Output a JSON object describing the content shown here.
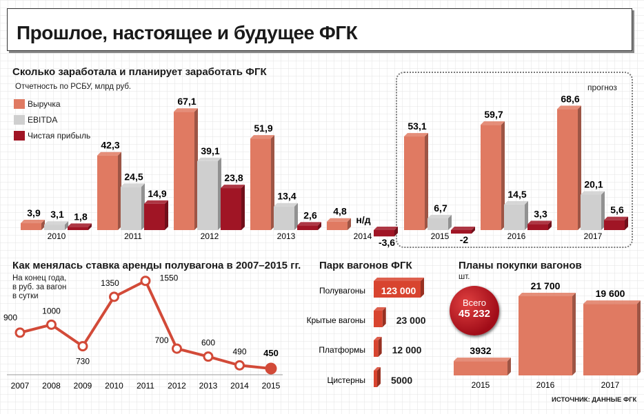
{
  "title": "Прошлое, настоящее и будущее ФГК",
  "source": "ИСТОЧНИК: ДАННЫЕ ФГК",
  "colors": {
    "revenue": "#e07a62",
    "ebitda": "#cfcfcf",
    "profit": "#a01525",
    "line": "#d24a38",
    "wagon": "#d8442f"
  },
  "revenue_section": {
    "title": "Сколько заработала и планирует заработать ФГК",
    "subtitle": "Отчетность по РСБУ, млрд руб.",
    "forecast_label": "прогноз",
    "legend": [
      "Выручка",
      "EBITDA",
      "Чистая прибыль"
    ]
  },
  "rent_section": {
    "title": "Как менялась ставка аренды полувагона в 2007–2015 гг.",
    "note_lines": [
      "На конец года,",
      "в руб. за вагон",
      "в сутки"
    ]
  },
  "fleet_section": {
    "title": "Парк вагонов ФГК"
  },
  "purchase_section": {
    "title": "Планы покупки вагонов",
    "unit": "шт.",
    "total_label": "Всего",
    "total_value": "45 232"
  },
  "chart_data": [
    {
      "type": "bar",
      "title": "Сколько заработала и планирует заработать ФГК",
      "ylabel": "Отчетность по РСБУ, млрд руб.",
      "categories": [
        "2010",
        "2011",
        "2012",
        "2013",
        "2014",
        "2015",
        "2016",
        "2017"
      ],
      "forecast_from": "2015",
      "series": [
        {
          "name": "Выручка",
          "values": [
            3.9,
            42.3,
            67.1,
            51.9,
            4.8,
            53.1,
            59.7,
            68.6
          ],
          "labels": [
            "3,9",
            "42,3",
            "67,1",
            "51,9",
            "4,8",
            "53,1",
            "59,7",
            "68,6"
          ]
        },
        {
          "name": "EBITDA",
          "values": [
            3.1,
            24.5,
            39.1,
            13.4,
            null,
            6.7,
            14.5,
            20.1
          ],
          "labels": [
            "3,1",
            "24,5",
            "39,1",
            "13,4",
            "н/д",
            "6,7",
            "14,5",
            "20,1"
          ]
        },
        {
          "name": "Чистая прибыль",
          "values": [
            1.8,
            14.9,
            23.8,
            2.6,
            -3.6,
            -2,
            3.3,
            5.6
          ],
          "labels": [
            "1,8",
            "14,9",
            "23,8",
            "2,6",
            "-3,6",
            "-2",
            "3,3",
            "5,6"
          ]
        }
      ],
      "ylim": [
        -5,
        75
      ]
    },
    {
      "type": "line",
      "title": "Как менялась ставка аренды полувагона в 2007–2015 гг.",
      "x": [
        "2007",
        "2008",
        "2009",
        "2010",
        "2011",
        "2012",
        "2013",
        "2014",
        "2015"
      ],
      "values": [
        900,
        1000,
        730,
        1350,
        1550,
        700,
        600,
        490,
        450
      ],
      "labels": [
        "900",
        "1000",
        "730",
        "1350",
        "1550",
        "700",
        "600",
        "490",
        "450"
      ],
      "ylim": [
        300,
        1700
      ]
    },
    {
      "type": "bar",
      "title": "Парк вагонов ФГК",
      "categories": [
        "Полувагоны",
        "Крытые вагоны",
        "Платформы",
        "Цистерны"
      ],
      "values": [
        123000,
        23000,
        12000,
        5000
      ],
      "labels": [
        "123 000",
        "23 000",
        "12 000",
        "5000"
      ]
    },
    {
      "type": "bar",
      "title": "Планы покупки вагонов",
      "ylabel": "шт.",
      "categories": [
        "2015",
        "2016",
        "2017"
      ],
      "values": [
        3932,
        21700,
        19600
      ],
      "labels": [
        "3932",
        "21 700",
        "19 600"
      ]
    }
  ]
}
